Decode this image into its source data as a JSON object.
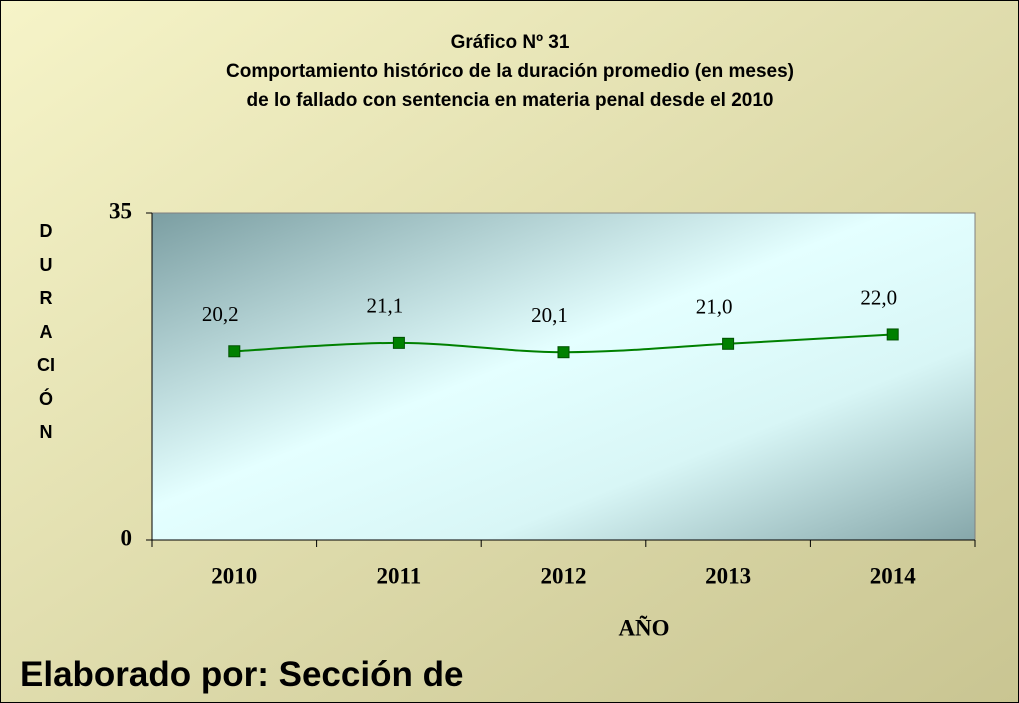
{
  "chart_data": {
    "type": "line",
    "title": [
      "Gráfico Nº 31",
      "Comportamiento histórico de la duración promedio (en meses)",
      "de lo fallado con sentencia en materia penal desde el 2010"
    ],
    "categories": [
      "2010",
      "2011",
      "2012",
      "2013",
      "2014"
    ],
    "values": [
      20.2,
      21.1,
      20.1,
      21.0,
      22.0
    ],
    "value_labels": [
      "20,2",
      "21,1",
      "20,1",
      "21,0",
      "22,0"
    ],
    "color": "#008000",
    "ylim": [
      0,
      35
    ],
    "yticks": [
      0,
      35
    ],
    "x_label": "AÑO",
    "y_label": "DURACIÓN",
    "note": "Elaborado por: Sección de"
  }
}
